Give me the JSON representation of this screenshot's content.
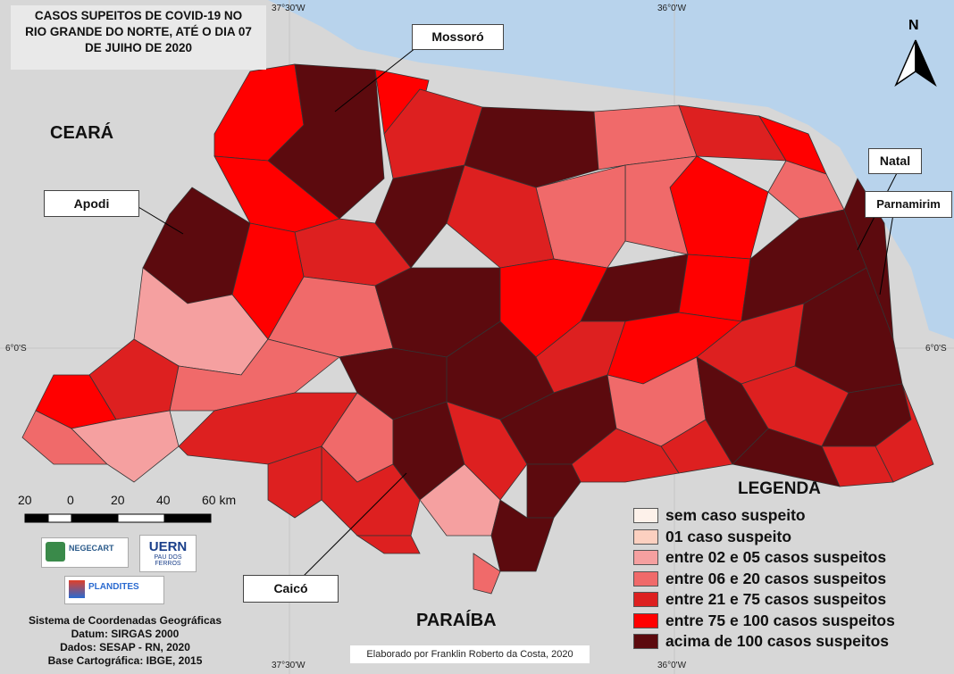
{
  "title": {
    "line1": "CASOS SUPEITOS DE COVID-19 NO",
    "line2": "RIO GRANDE DO NORTE, ATÉ O DIA 07",
    "line3": "DE JUIHO DE 2020"
  },
  "regions": {
    "ceara": "CEARÁ",
    "paraiba": "PARAÍBA"
  },
  "city_labels": {
    "mossoro": "Mossoró",
    "apodi": "Apodi",
    "natal": "Natal",
    "parnamirim": "Parnamirim",
    "caico": "Caicó"
  },
  "north_arrow": "N",
  "coords": {
    "lon_west": "37°30'W",
    "lon_east": "36°0'W",
    "lat_left": "6°0'S",
    "lat_right": "6°0'S"
  },
  "scale": {
    "labels": [
      "20",
      "0",
      "20",
      "40",
      "60 km"
    ]
  },
  "legend": {
    "title": "LEGENDA",
    "items": [
      {
        "label": "sem caso suspeito",
        "color": "#fdf1ea"
      },
      {
        "label": "01 caso suspeito",
        "color": "#fcd0c0"
      },
      {
        "label": "entre 02 e 05 casos suspeitos",
        "color": "#f5a0a0"
      },
      {
        "label": "entre 06 e 20 casos suspeitos",
        "color": "#f06a6a"
      },
      {
        "label": "entre 21 e 75 casos suspeitos",
        "color": "#dd2020"
      },
      {
        "label": "entre 75 e 100 casos suspeitos",
        "color": "#ff0000"
      },
      {
        "label": "acima de 100 casos suspeitos",
        "color": "#5c0a0e"
      }
    ]
  },
  "logos": {
    "negecart": "NEGECART",
    "uern_name": "UERN",
    "uern_sub": "PAU DOS FERROS",
    "plandites": "PLANDITES"
  },
  "credits": {
    "line1": "Sistema de Coordenadas Geográficas",
    "line2": "Datum: SIRGAS 2000",
    "line3": "Dados: SESAP - RN, 2020",
    "line4": "Base Cartográfica: IBGE, 2015"
  },
  "author": "Elaborado por Franklin Roberto da Costa, 2020",
  "colors": {
    "sea": "#b8d3ec",
    "land_outside": "#d7d7d7",
    "max": "#5c0a0e",
    "red": "#ff0000",
    "mid": "#dd2020",
    "light": "#f06a6a",
    "pale": "#f5a0a0"
  }
}
